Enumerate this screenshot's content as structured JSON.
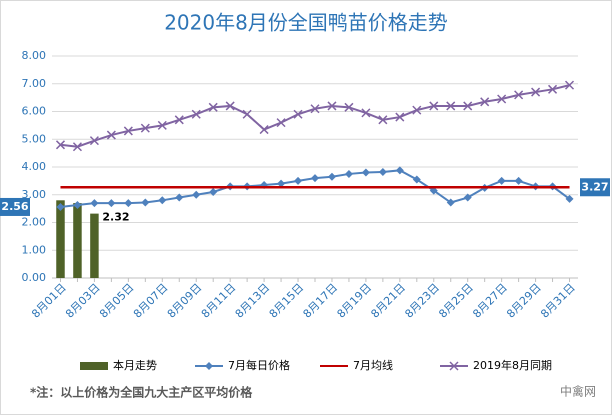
{
  "chart_data": {
    "type": "bar",
    "title": "2020年8月份全国鸭苗价格走势",
    "footnote": "*注：以上价格为全国九大主产区平均价格",
    "source": "中禽网",
    "categories": [
      "8月01日",
      null,
      "8月03日",
      null,
      "8月05日",
      null,
      "8月07日",
      null,
      "8月09日",
      null,
      "8月11日",
      null,
      "8月13日",
      null,
      "8月15日",
      null,
      "8月17日",
      null,
      "8月19日",
      null,
      "8月21日",
      null,
      "8月23日",
      null,
      "8月25日",
      null,
      "8月27日",
      null,
      "8月29日",
      null,
      "8月31日"
    ],
    "ylim": [
      0,
      8
    ],
    "yticks": [
      {
        "value": 0,
        "label": "0.00"
      },
      {
        "value": 1,
        "label": "1.00"
      },
      {
        "value": 2,
        "label": "2.00"
      },
      {
        "value": 3,
        "label": "3.00"
      },
      {
        "value": 4,
        "label": "4.00"
      },
      {
        "value": 5,
        "label": "5.00"
      },
      {
        "value": 6,
        "label": "6.00"
      },
      {
        "value": 7,
        "label": "7.00"
      },
      {
        "value": 8,
        "label": "8.00"
      }
    ],
    "grid": true,
    "legend": "bottom",
    "series": [
      {
        "name": "本月走势",
        "type": "bar",
        "color": "#4f6228",
        "values": [
          2.8,
          2.7,
          2.32,
          null,
          null,
          null,
          null,
          null,
          null,
          null,
          null,
          null,
          null,
          null,
          null,
          null,
          null,
          null,
          null,
          null,
          null,
          null,
          null,
          null,
          null,
          null,
          null,
          null,
          null,
          null,
          null
        ]
      },
      {
        "name": "7月每日价格",
        "type": "line",
        "color": "#4f81bd",
        "marker": "diamond",
        "values": [
          2.56,
          2.63,
          2.7,
          2.7,
          2.7,
          2.72,
          2.8,
          2.9,
          3.0,
          3.1,
          3.3,
          3.3,
          3.35,
          3.4,
          3.5,
          3.6,
          3.65,
          3.75,
          3.8,
          3.82,
          3.88,
          3.55,
          3.15,
          2.72,
          2.9,
          3.25,
          3.5,
          3.5,
          3.3,
          3.3,
          2.85
        ]
      },
      {
        "name": "7月均线",
        "type": "line",
        "color": "#c00000",
        "marker": "none",
        "values": [
          3.27,
          3.27,
          3.27,
          3.27,
          3.27,
          3.27,
          3.27,
          3.27,
          3.27,
          3.27,
          3.27,
          3.27,
          3.27,
          3.27,
          3.27,
          3.27,
          3.27,
          3.27,
          3.27,
          3.27,
          3.27,
          3.27,
          3.27,
          3.27,
          3.27,
          3.27,
          3.27,
          3.27,
          3.27,
          3.27,
          3.27
        ]
      },
      {
        "name": "2019年8月同期",
        "type": "line",
        "color": "#8064a2",
        "marker": "x",
        "values": [
          4.8,
          4.73,
          4.95,
          5.15,
          5.3,
          5.4,
          5.5,
          5.7,
          5.9,
          6.15,
          6.2,
          5.9,
          5.35,
          5.6,
          5.9,
          6.1,
          6.2,
          6.15,
          5.95,
          5.7,
          5.8,
          6.05,
          6.2,
          6.2,
          6.2,
          6.35,
          6.45,
          6.6,
          6.7,
          6.8,
          6.95
        ]
      }
    ]
  }
}
